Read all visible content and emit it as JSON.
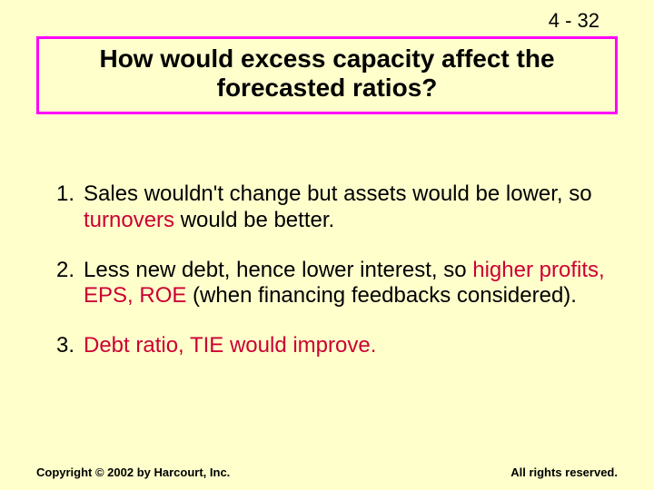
{
  "page_number": "4 - 32",
  "title": "How would excess capacity affect the forecasted ratios?",
  "items": [
    {
      "num": "1.",
      "pre": "Sales wouldn't change but assets would be lower, so ",
      "hl": "turnovers",
      "post": " would be better."
    },
    {
      "num": "2.",
      "pre": "Less new debt, hence lower interest, so ",
      "hl": "higher profits, EPS, ROE",
      "post": " (when financing feedbacks considered)."
    },
    {
      "num": "3.",
      "pre": "",
      "hl": "Debt ratio, TIE would improve.",
      "post": ""
    }
  ],
  "footer_left": "Copyright © 2002 by Harcourt, Inc.",
  "footer_right": "All rights reserved.",
  "colors": {
    "background": "#ffffcc",
    "border": "#ff00ff",
    "highlight": "#cc0033",
    "text": "#000000"
  }
}
